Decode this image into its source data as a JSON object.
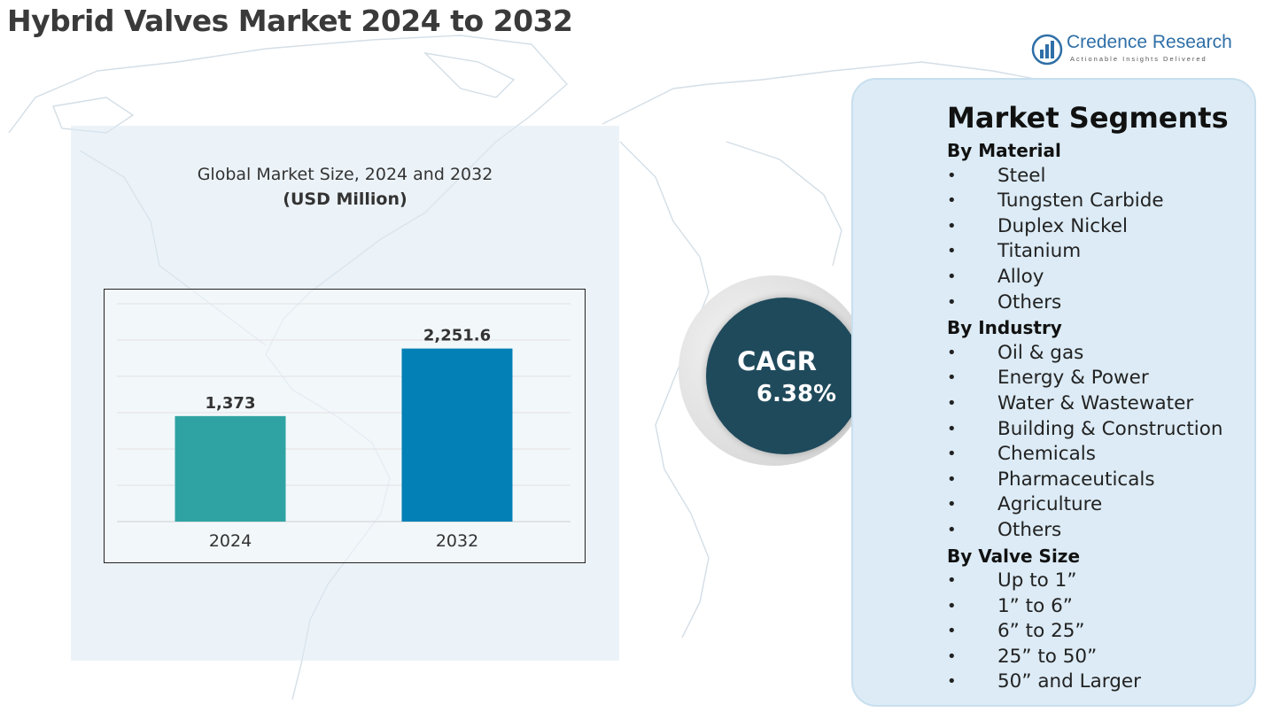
{
  "title": "Hybrid Valves Market 2024 to 2032",
  "logo": {
    "name": "Credence Research",
    "tagline": "Actionable Insights Delivered"
  },
  "chart_caption": {
    "title": "Global Market Size, 2024 and 2032",
    "unit": "(USD Million)"
  },
  "chart_data": {
    "type": "bar",
    "title": "Global Market Size, 2024 and 2032",
    "subtitle": "(USD Million)",
    "categories": [
      "2024",
      "2032"
    ],
    "values": [
      1373,
      2251.6
    ],
    "value_labels": [
      "1,373",
      "2,251.6"
    ],
    "bar_colors": [
      "#2fa3a3",
      "#0380b5"
    ],
    "ylim": [
      0,
      2800
    ],
    "grid": true,
    "legend": "none"
  },
  "cagr": {
    "label": "CAGR",
    "value": "6.38%"
  },
  "segments": {
    "heading": "Market Segments",
    "groups": [
      {
        "title": "By Material",
        "items": [
          "Steel",
          "Tungsten Carbide",
          "Duplex Nickel",
          "Titanium",
          "Alloy",
          "Others"
        ]
      },
      {
        "title": "By Industry",
        "items": [
          "Oil & gas",
          "Energy & Power",
          "Water & Wastewater",
          "Building & Construction",
          "Chemicals",
          "Pharmaceuticals",
          "Agriculture",
          "Others"
        ]
      },
      {
        "title": "By Valve Size",
        "items": [
          "Up to 1”",
          "1” to 6”",
          "6” to 25”",
          "25” to 50”",
          "50” and Larger"
        ]
      }
    ]
  },
  "colors": {
    "cagr_circle": "#1f4a5c",
    "panel_bg": "#dcebf5",
    "logo_blue": "#2f6fa7"
  }
}
